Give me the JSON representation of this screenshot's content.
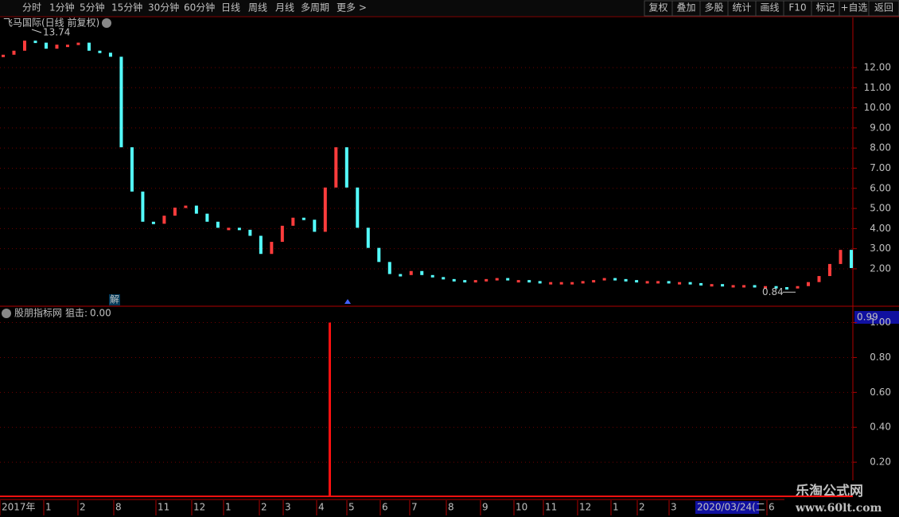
{
  "toolbar": {
    "periods": [
      "分时",
      "1分钟",
      "5分钟",
      "15分钟",
      "30分钟",
      "60分钟",
      "日线",
      "周线",
      "月线",
      "多周期",
      "更多 >"
    ],
    "active_period": 6,
    "buttons": [
      "复权",
      "叠加",
      "多股",
      "统计",
      "画线",
      "F10",
      "标记",
      "+自选",
      "返回"
    ]
  },
  "main": {
    "title": "飞马国际(日线 前复权)",
    "ylim": [
      0.14,
      14.49
    ],
    "yticks": [
      {
        "value": 2,
        "label": "2.00"
      },
      {
        "value": 3,
        "label": "3.00"
      },
      {
        "value": 4,
        "label": "4.00"
      },
      {
        "value": 5,
        "label": "5.00"
      },
      {
        "value": 6,
        "label": "6.00"
      },
      {
        "value": 7,
        "label": "7.00"
      },
      {
        "value": 8,
        "label": "8.00"
      },
      {
        "value": 9,
        "label": "9.00"
      },
      {
        "value": 10,
        "label": "10.00"
      },
      {
        "value": 11,
        "label": "11.00"
      },
      {
        "value": 12,
        "label": "12.00"
      }
    ],
    "values": [
      12.6,
      12.8,
      13.3,
      13.2,
      12.9,
      13.1,
      13.1,
      13.2,
      12.8,
      12.7,
      12.5,
      8.0,
      5.8,
      4.3,
      4.2,
      4.6,
      5.0,
      5.1,
      4.7,
      4.3,
      4.0,
      4.0,
      3.9,
      3.6,
      2.7,
      3.3,
      4.1,
      4.5,
      4.4,
      3.8,
      6.0,
      8.0,
      6.0,
      4.0,
      3.0,
      2.3,
      1.7,
      1.65,
      1.85,
      1.65,
      1.55,
      1.45,
      1.4,
      1.35,
      1.4,
      1.45,
      1.5,
      1.4,
      1.4,
      1.35,
      1.3,
      1.3,
      1.3,
      1.3,
      1.35,
      1.4,
      1.5,
      1.45,
      1.4,
      1.35,
      1.35,
      1.35,
      1.3,
      1.3,
      1.25,
      1.2,
      1.2,
      1.15,
      1.15,
      1.15,
      1.1,
      1.1,
      1.05,
      1.0,
      1.1,
      1.3,
      1.6,
      2.2,
      2.9,
      2.0
    ],
    "high_label": {
      "value": 13.74,
      "label": "13.74"
    },
    "low_label": 0.84,
    "marker_text": "解"
  },
  "indicator": {
    "name": "股朋指标网",
    "series_label": "狙击:",
    "series_value": {
      "value": 0,
      "label": "0.00"
    },
    "ylim": [
      0,
      1.08
    ],
    "yticks": [
      {
        "value": 0.2,
        "label": "0.20"
      },
      {
        "value": 0.4,
        "label": "0.40"
      },
      {
        "value": 0.6,
        "label": "0.60"
      },
      {
        "value": 0.8,
        "label": "0.80"
      },
      {
        "value": 1,
        "label": "1.00"
      }
    ],
    "spike": 1.0,
    "cursor_value": 0.99
  },
  "xaxis": {
    "labels": [
      "2017年",
      "1",
      "2",
      "8",
      "11",
      "12",
      "1",
      "2",
      "3",
      "4",
      "5",
      "6",
      "7",
      "8",
      "9",
      "10",
      "11",
      "12",
      "1",
      "2",
      "3",
      "6"
    ],
    "current_date": "2020/03/24(二"
  },
  "watermark": {
    "name": "乐淘公式网",
    "url": "www.60lt.com"
  }
}
